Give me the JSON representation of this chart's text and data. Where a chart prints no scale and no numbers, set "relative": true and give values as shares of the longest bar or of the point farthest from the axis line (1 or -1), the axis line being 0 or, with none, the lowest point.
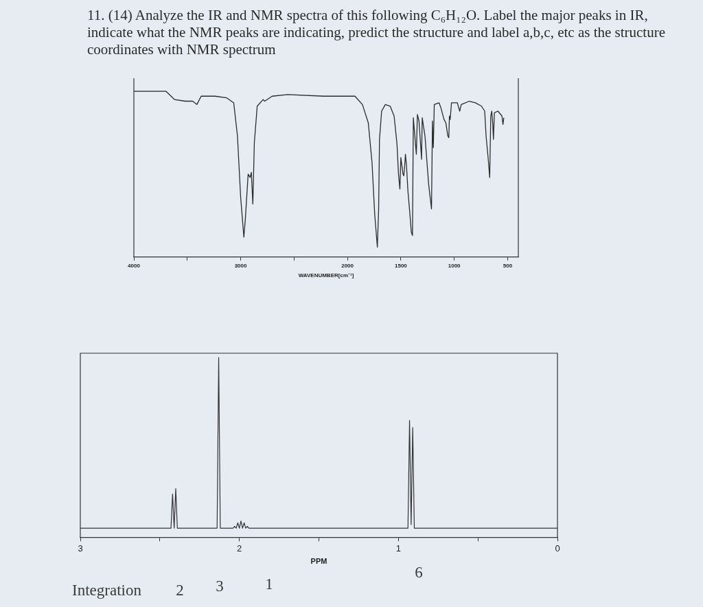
{
  "chart_data": [
    {
      "type": "line",
      "title": "11. (14) Analyze the IR and NMR spectra of this following C₆H₁₂O. Label the major peaks in IR, indicate what the NMR peaks are indicating, predict the structure and label a,b,c, etc as the structure coordinates with NMR spectrum",
      "xlabel": "WAVENUMBER[cm⁻¹]",
      "relative": true,
      "color": "#2b2b2b",
      "xlim": [
        4000,
        400
      ],
      "xticks": [
        4000,
        {
          "value": 3500,
          "label": null
        },
        3000,
        {
          "value": 2500,
          "label": null
        },
        2000,
        1500,
        1000,
        500
      ],
      "x": [
        4000,
        3900,
        3700,
        3620,
        3520,
        3450,
        3410,
        3370,
        3240,
        3130,
        3065,
        3030,
        3000,
        2970,
        2955,
        2930,
        2912,
        2900,
        2886,
        2872,
        2845,
        2790,
        2775,
        2705,
        2560,
        2220,
        1930,
        1860,
        1805,
        1770,
        1745,
        1720,
        1708,
        1700,
        1680,
        1645,
        1600,
        1563,
        1536,
        1522,
        1509,
        1500,
        1490,
        1480,
        1472,
        1462,
        1457,
        1447,
        1434,
        1418,
        1402,
        1391,
        1383,
        1355,
        1345,
        1330,
        1306,
        1300,
        1274,
        1240,
        1213,
        1204,
        1196,
        1187,
        1142,
        1125,
        1096,
        1079,
        1060,
        1051,
        1045,
        1038,
        1026,
        971,
        949,
        934,
        859,
        802,
        745,
        715,
        702,
        683,
        668,
        658,
        649,
        639,
        633,
        624,
        591,
        553,
        544,
        536
      ],
      "values": [
        1.0,
        1.0,
        1.0,
        0.95,
        0.94,
        0.94,
        0.92,
        0.97,
        0.97,
        0.96,
        0.93,
        0.73,
        0.36,
        0.12,
        0.24,
        0.5,
        0.48,
        0.51,
        0.32,
        0.69,
        0.91,
        0.95,
        0.94,
        0.97,
        0.98,
        0.97,
        0.97,
        0.92,
        0.81,
        0.57,
        0.26,
        0.06,
        0.29,
        0.71,
        0.88,
        0.92,
        0.91,
        0.85,
        0.68,
        0.5,
        0.41,
        0.6,
        0.55,
        0.5,
        0.49,
        0.57,
        0.62,
        0.55,
        0.4,
        0.28,
        0.15,
        0.13,
        0.84,
        0.62,
        0.86,
        0.82,
        0.59,
        0.84,
        0.73,
        0.44,
        0.29,
        0.82,
        0.66,
        0.92,
        0.93,
        0.9,
        0.83,
        0.81,
        0.73,
        0.72,
        0.85,
        0.83,
        0.93,
        0.93,
        0.88,
        0.92,
        0.94,
        0.93,
        0.91,
        0.88,
        0.73,
        0.6,
        0.48,
        0.85,
        0.88,
        0.8,
        0.71,
        0.87,
        0.88,
        0.85,
        0.8,
        0.84
      ]
    },
    {
      "type": "line",
      "xlabel": "PPM",
      "relative": true,
      "color": "#333333",
      "xlim": [
        3,
        0
      ],
      "xticks": [
        3,
        {
          "value": 2.5,
          "label": null
        },
        2,
        {
          "value": 1.5,
          "label": null
        },
        1,
        {
          "value": 0.5,
          "label": null
        },
        0
      ],
      "x": [
        3,
        2.43,
        2.42,
        2.41,
        2.4,
        2.39,
        2.14,
        2.13,
        2.12,
        2.04,
        2.03,
        2.02,
        2.01,
        2.0,
        1.99,
        1.98,
        1.97,
        1.96,
        1.95,
        1.94,
        0.94,
        0.93,
        0.92,
        0.91,
        0.9,
        0
      ],
      "values": [
        0.05,
        0.05,
        0.24,
        0.05,
        0.27,
        0.05,
        0.05,
        1,
        0.05,
        0.05,
        0.06,
        0.05,
        0.08,
        0.05,
        0.09,
        0.05,
        0.08,
        0.05,
        0.06,
        0.05,
        0.05,
        0.65,
        0.07,
        0.61,
        0.05,
        0.05
      ],
      "annotations": [
        "Integration",
        "2",
        "3",
        "1",
        "6"
      ]
    }
  ]
}
